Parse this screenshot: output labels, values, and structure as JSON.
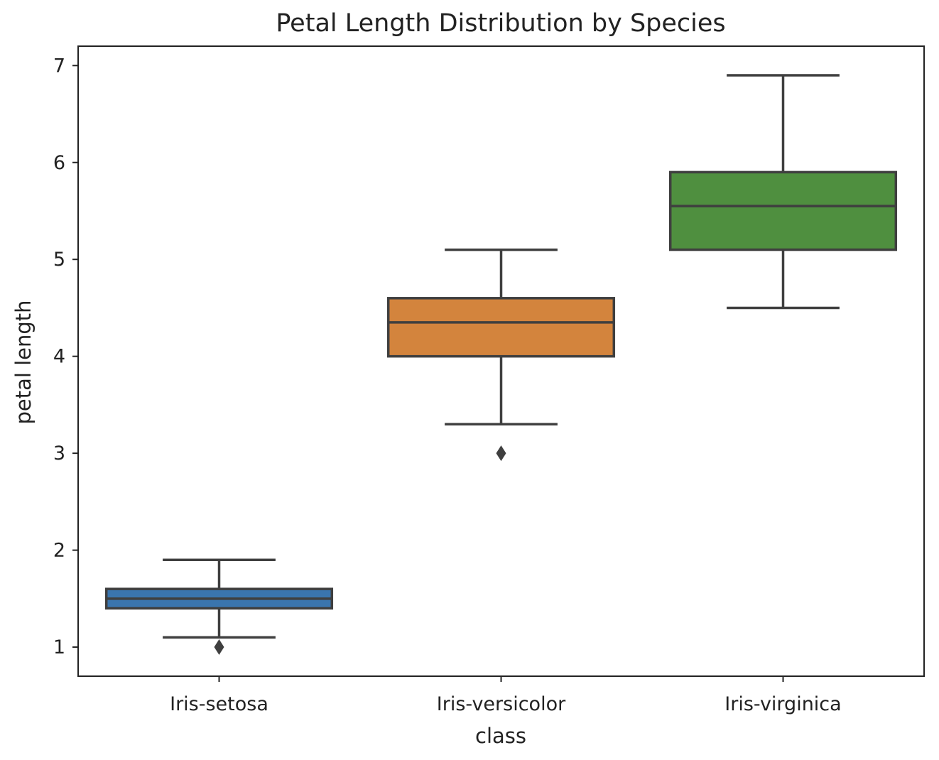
{
  "chart_data": {
    "type": "box",
    "title": "Petal Length Distribution by Species",
    "xlabel": "class",
    "ylabel": "petal length",
    "ylim": [
      0.7,
      7.2
    ],
    "yticks": [
      1,
      2,
      3,
      4,
      5,
      6,
      7
    ],
    "categories": [
      "Iris-setosa",
      "Iris-versicolor",
      "Iris-virginica"
    ],
    "boxes": [
      {
        "category": "Iris-setosa",
        "whisker_low": 1.1,
        "q1": 1.4,
        "median": 1.5,
        "q3": 1.6,
        "whisker_high": 1.9,
        "outliers": [
          1.0
        ],
        "color": "#3a75ae"
      },
      {
        "category": "Iris-versicolor",
        "whisker_low": 3.3,
        "q1": 4.0,
        "median": 4.35,
        "q3": 4.6,
        "whisker_high": 5.1,
        "outliers": [
          3.0
        ],
        "color": "#d3843d"
      },
      {
        "category": "Iris-virginica",
        "whisker_low": 4.5,
        "q1": 5.1,
        "median": 5.55,
        "q3": 5.9,
        "whisker_high": 6.9,
        "outliers": [],
        "color": "#4f8f3f"
      }
    ],
    "line_color": "#3f3f3f",
    "grid": false,
    "legend": false
  }
}
